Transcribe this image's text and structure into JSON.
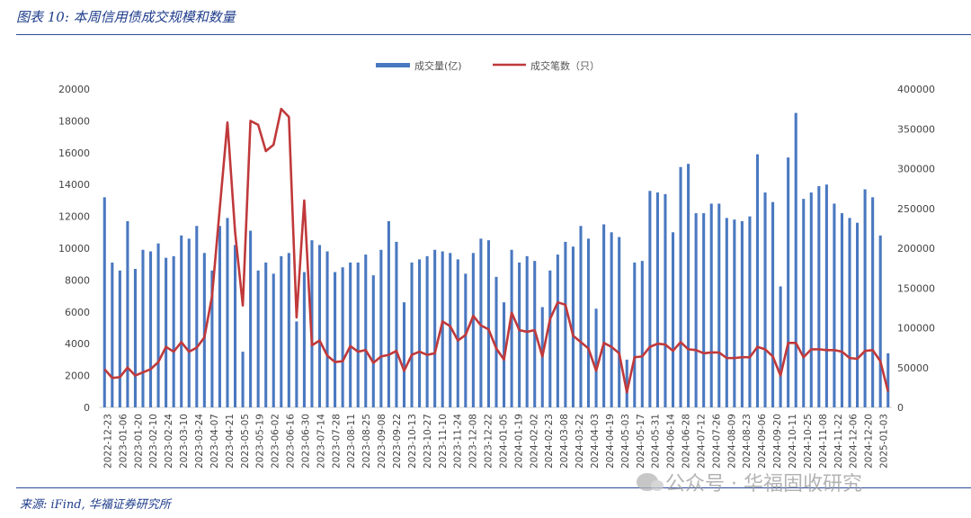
{
  "header": {
    "title": "图表 10:  本周信用债成交规模和数量"
  },
  "footer": {
    "source": "来源:  iFind, 华福证券研究所"
  },
  "watermark": {
    "text": "公众号 · 华福固收研究"
  },
  "colors": {
    "bar": "#4a78c0",
    "line": "#c0393b",
    "rule": "#2a4a9a",
    "title": "#1f3d8c"
  },
  "chart_data": {
    "type": "bar",
    "title": "",
    "legend": {
      "position": "top-center",
      "items": [
        "成交量(亿)",
        "成交笔数（只）"
      ]
    },
    "x_tick_labels": [
      "2022-12-23",
      "2023-01-06",
      "2023-01-20",
      "2023-02-10",
      "2023-02-24",
      "2023-03-10",
      "2023-03-24",
      "2023-04-07",
      "2023-04-21",
      "2023-05-05",
      "2023-05-19",
      "2023-06-02",
      "2023-06-16",
      "2023-06-30",
      "2023-07-14",
      "2023-07-28",
      "2023-08-11",
      "2023-08-25",
      "2023-09-08",
      "2023-09-22",
      "2023-10-13",
      "2023-10-27",
      "2023-11-10",
      "2023-11-24",
      "2023-12-08",
      "2023-12-22",
      "2024-01-05",
      "2024-01-19",
      "2024-02-02",
      "2024-02-23",
      "2024-03-08",
      "2024-03-22",
      "2024-04-03",
      "2024-04-19",
      "2024-05-03",
      "2024-05-17",
      "2024-05-31",
      "2024-06-14",
      "2024-06-28",
      "2024-07-12",
      "2024-07-26",
      "2024-08-09",
      "2024-08-23",
      "2024-09-06",
      "2024-09-20",
      "2024-10-11",
      "2024-10-25",
      "2024-11-08",
      "2024-11-22",
      "2024-12-06",
      "2024-12-20",
      "2025-01-03"
    ],
    "y_left": {
      "min": 0,
      "max": 20000,
      "step": 2000
    },
    "y_right": {
      "min": 0,
      "max": 400000,
      "step": 50000
    },
    "series": [
      {
        "name": "成交量(亿)",
        "axis": "left",
        "type": "bar",
        "values": [
          13200,
          9100,
          8600,
          11700,
          8700,
          9900,
          9800,
          10300,
          9400,
          9500,
          10800,
          10600,
          11400,
          9700,
          8600,
          11400,
          11900,
          10200,
          3500,
          11100,
          8600,
          9100,
          8400,
          9500,
          9700,
          5400,
          8500,
          10500,
          10200,
          9800,
          8500,
          8800,
          9100,
          9100,
          9600,
          8300,
          9900,
          11700,
          10400,
          6600,
          9100,
          9300,
          9500,
          9900,
          9800,
          9700,
          9300,
          8400,
          9700,
          10600,
          10500,
          8200,
          6600,
          9900,
          9100,
          9500,
          9200,
          6300,
          8600,
          9600,
          10400,
          10100,
          11400,
          10600,
          6200,
          11500,
          11000,
          10700,
          3000,
          9100,
          9200,
          13600,
          13500,
          13400,
          11000,
          15100,
          15300,
          12200,
          12200,
          12800,
          12800,
          11900,
          11800,
          11700,
          12000,
          15900,
          13500,
          12900,
          7600,
          15700,
          18500,
          13100,
          13500,
          13900,
          14000,
          12800,
          12200,
          11900,
          11600,
          13700,
          13200,
          10800,
          3400
        ]
      },
      {
        "name": "成交笔数（只）",
        "axis": "right",
        "type": "line",
        "values": [
          48000,
          37000,
          38000,
          50000,
          40000,
          44000,
          48000,
          57000,
          76000,
          70000,
          82000,
          70000,
          75000,
          88000,
          140000,
          250000,
          358000,
          220000,
          128000,
          360000,
          355000,
          322000,
          330000,
          375000,
          365000,
          113000,
          260000,
          78000,
          84000,
          65000,
          57000,
          58000,
          77000,
          70000,
          72000,
          56000,
          64000,
          66000,
          71000,
          46000,
          66000,
          70000,
          66000,
          68000,
          108000,
          102000,
          84000,
          91000,
          115000,
          103000,
          98000,
          74000,
          60000,
          119000,
          97000,
          95000,
          97000,
          64000,
          111000,
          132000,
          129000,
          90000,
          82000,
          74000,
          46000,
          81000,
          76000,
          68000,
          19000,
          63000,
          64000,
          76000,
          80000,
          79000,
          71000,
          82000,
          73000,
          72000,
          68000,
          69000,
          69000,
          62000,
          62000,
          63000,
          63000,
          76000,
          73000,
          64000,
          40000,
          81000,
          81000,
          63000,
          73000,
          73000,
          72000,
          72000,
          70000,
          62000,
          61000,
          71000,
          72000,
          58000,
          20000
        ]
      }
    ]
  }
}
